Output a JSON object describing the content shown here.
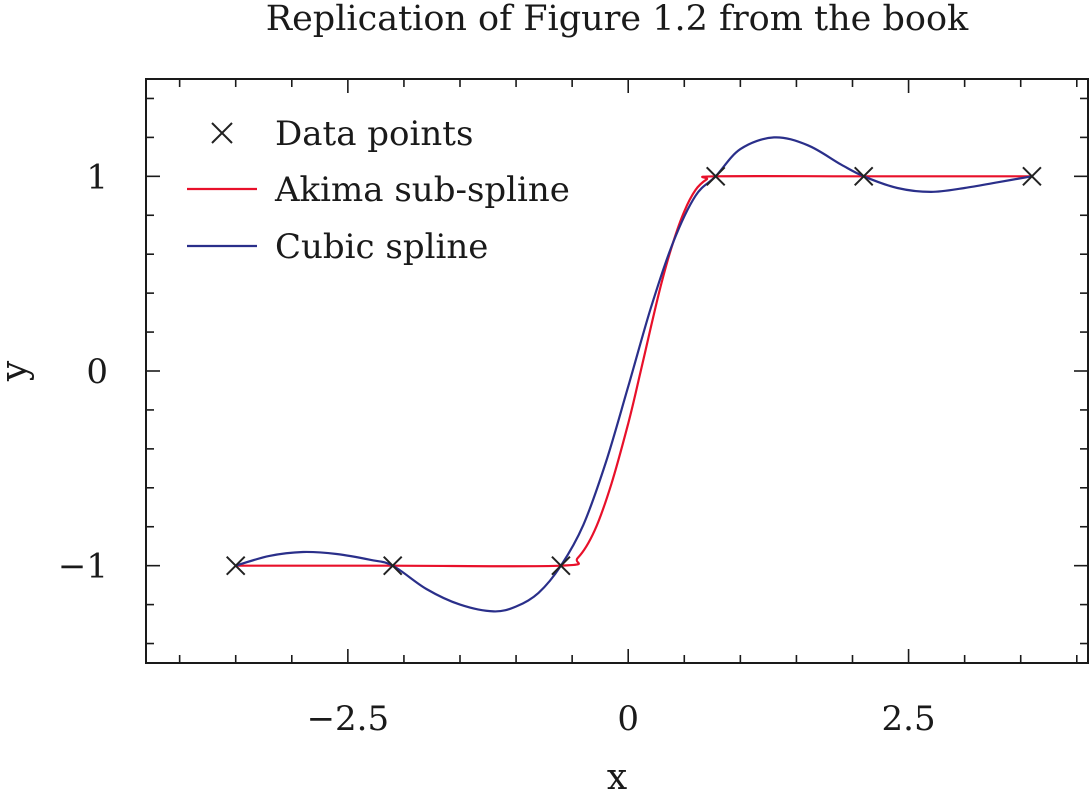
{
  "chart_data": {
    "type": "line",
    "title": "Replication of Figure 1.2 from the book",
    "xlabel": "x",
    "ylabel": "y",
    "xlim": [
      -4.3,
      4.1
    ],
    "ylim": [
      -1.5,
      1.5
    ],
    "x_ticks": [
      {
        "value": -2.5,
        "label": "−2.5"
      },
      {
        "value": 0,
        "label": "0"
      },
      {
        "value": 2.5,
        "label": "2.5"
      }
    ],
    "y_ticks": [
      {
        "value": -1,
        "label": "−1"
      },
      {
        "value": 0,
        "label": "0"
      },
      {
        "value": 1,
        "label": "1"
      }
    ],
    "x_minor_step": 0.5,
    "y_minor_step": 0.2,
    "grid": false,
    "legend_position": "top-left",
    "data_points": {
      "name": "Data points",
      "x": [
        -3.5,
        -2.1,
        -0.6,
        0.78,
        2.1,
        3.6
      ],
      "y": [
        -1,
        -1,
        -1,
        1,
        1,
        1
      ],
      "color": "#222222"
    },
    "series": [
      {
        "name": "Akima sub-spline",
        "color": "#e8102a",
        "x": [
          -3.5,
          -2.1,
          -0.6,
          -0.45,
          -0.3,
          -0.15,
          0.0,
          0.1,
          0.2,
          0.3,
          0.4,
          0.5,
          0.6,
          0.7,
          0.78,
          2.1,
          3.6
        ],
        "y": [
          -1,
          -1,
          -1,
          -0.96,
          -0.82,
          -0.58,
          -0.27,
          -0.03,
          0.22,
          0.46,
          0.66,
          0.82,
          0.93,
          0.985,
          1,
          1,
          1
        ]
      },
      {
        "name": "Cubic spline",
        "color": "#2a2f8a",
        "x": [
          -3.5,
          -3.2,
          -2.9,
          -2.6,
          -2.3,
          -2.1,
          -1.8,
          -1.5,
          -1.2,
          -1.0,
          -0.8,
          -0.6,
          -0.4,
          -0.2,
          0.0,
          0.2,
          0.4,
          0.6,
          0.78,
          1.0,
          1.3,
          1.6,
          1.9,
          2.1,
          2.4,
          2.7,
          3.0,
          3.3,
          3.6
        ],
        "y": [
          -1,
          -0.95,
          -0.93,
          -0.94,
          -0.97,
          -1,
          -1.12,
          -1.2,
          -1.235,
          -1.21,
          -1.14,
          -1.0,
          -0.79,
          -0.47,
          -0.08,
          0.32,
          0.66,
          0.9,
          1.0,
          1.14,
          1.2,
          1.16,
          1.06,
          1.0,
          0.94,
          0.92,
          0.94,
          0.97,
          1
        ]
      }
    ]
  }
}
